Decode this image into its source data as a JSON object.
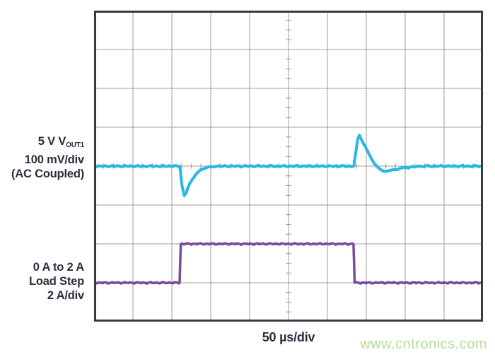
{
  "colors": {
    "vout1": "#29b7e5",
    "load": "#7a4a9c",
    "grid": "#9c9ca2",
    "border": "#3a3a45",
    "label_text": "#2b2c3e",
    "watermark": "#b7dc9b",
    "background": "#ffffff"
  },
  "labels": {
    "vout1": {
      "line1_prefix": "5 V V",
      "line1_sub": "OUT1",
      "line2": "100 mV/div",
      "line3": "(AC Coupled)"
    },
    "load": {
      "line1": "0 A to 2 A",
      "line2": "Load Step",
      "line3": "2 A/div"
    },
    "time_per_div": "50 µs/div",
    "watermark": "www.cntronics.com"
  },
  "chart_data": {
    "type": "line",
    "title": "",
    "xlabel": "50 µs/div",
    "x_unit": "µs",
    "time_per_div_us": 50,
    "x_range_us": [
      0,
      500
    ],
    "divisions": {
      "x": 10,
      "y": 8
    },
    "grid": true,
    "minor_ticks_per_div": 4,
    "series": [
      {
        "name": "5 V VOUT1, 100 mV/div (AC Coupled)",
        "unit": "mV",
        "units_per_div": 100,
        "zero_y_div": 4.0,
        "color_key": "vout1",
        "points": [
          [
            0,
            0
          ],
          [
            110,
            0
          ],
          [
            111,
            -10
          ],
          [
            113,
            -50
          ],
          [
            116,
            -76
          ],
          [
            119,
            -66
          ],
          [
            122,
            -50
          ],
          [
            126,
            -34
          ],
          [
            131,
            -20
          ],
          [
            137,
            -10
          ],
          [
            144,
            -4
          ],
          [
            153,
            -1
          ],
          [
            162,
            0
          ],
          [
            334,
            0
          ],
          [
            336,
            30
          ],
          [
            339,
            68
          ],
          [
            341,
            80
          ],
          [
            344,
            69
          ],
          [
            348,
            52
          ],
          [
            353,
            32
          ],
          [
            358,
            15
          ],
          [
            362,
            3
          ],
          [
            366,
            -6
          ],
          [
            371,
            -11
          ],
          [
            376,
            -13
          ],
          [
            383,
            -11
          ],
          [
            391,
            -7
          ],
          [
            401,
            -4
          ],
          [
            413,
            -1
          ],
          [
            426,
            0
          ],
          [
            500,
            0
          ]
        ]
      },
      {
        "name": "Load current, 0 A to 2 A step, 2 A/div",
        "unit": "A",
        "units_per_div": 2,
        "zero_y_div": 7.0,
        "color_key": "load",
        "points": [
          [
            0,
            0
          ],
          [
            110,
            0
          ],
          [
            111.5,
            2
          ],
          [
            333.5,
            2
          ],
          [
            335,
            0
          ],
          [
            500,
            0
          ]
        ]
      }
    ]
  }
}
